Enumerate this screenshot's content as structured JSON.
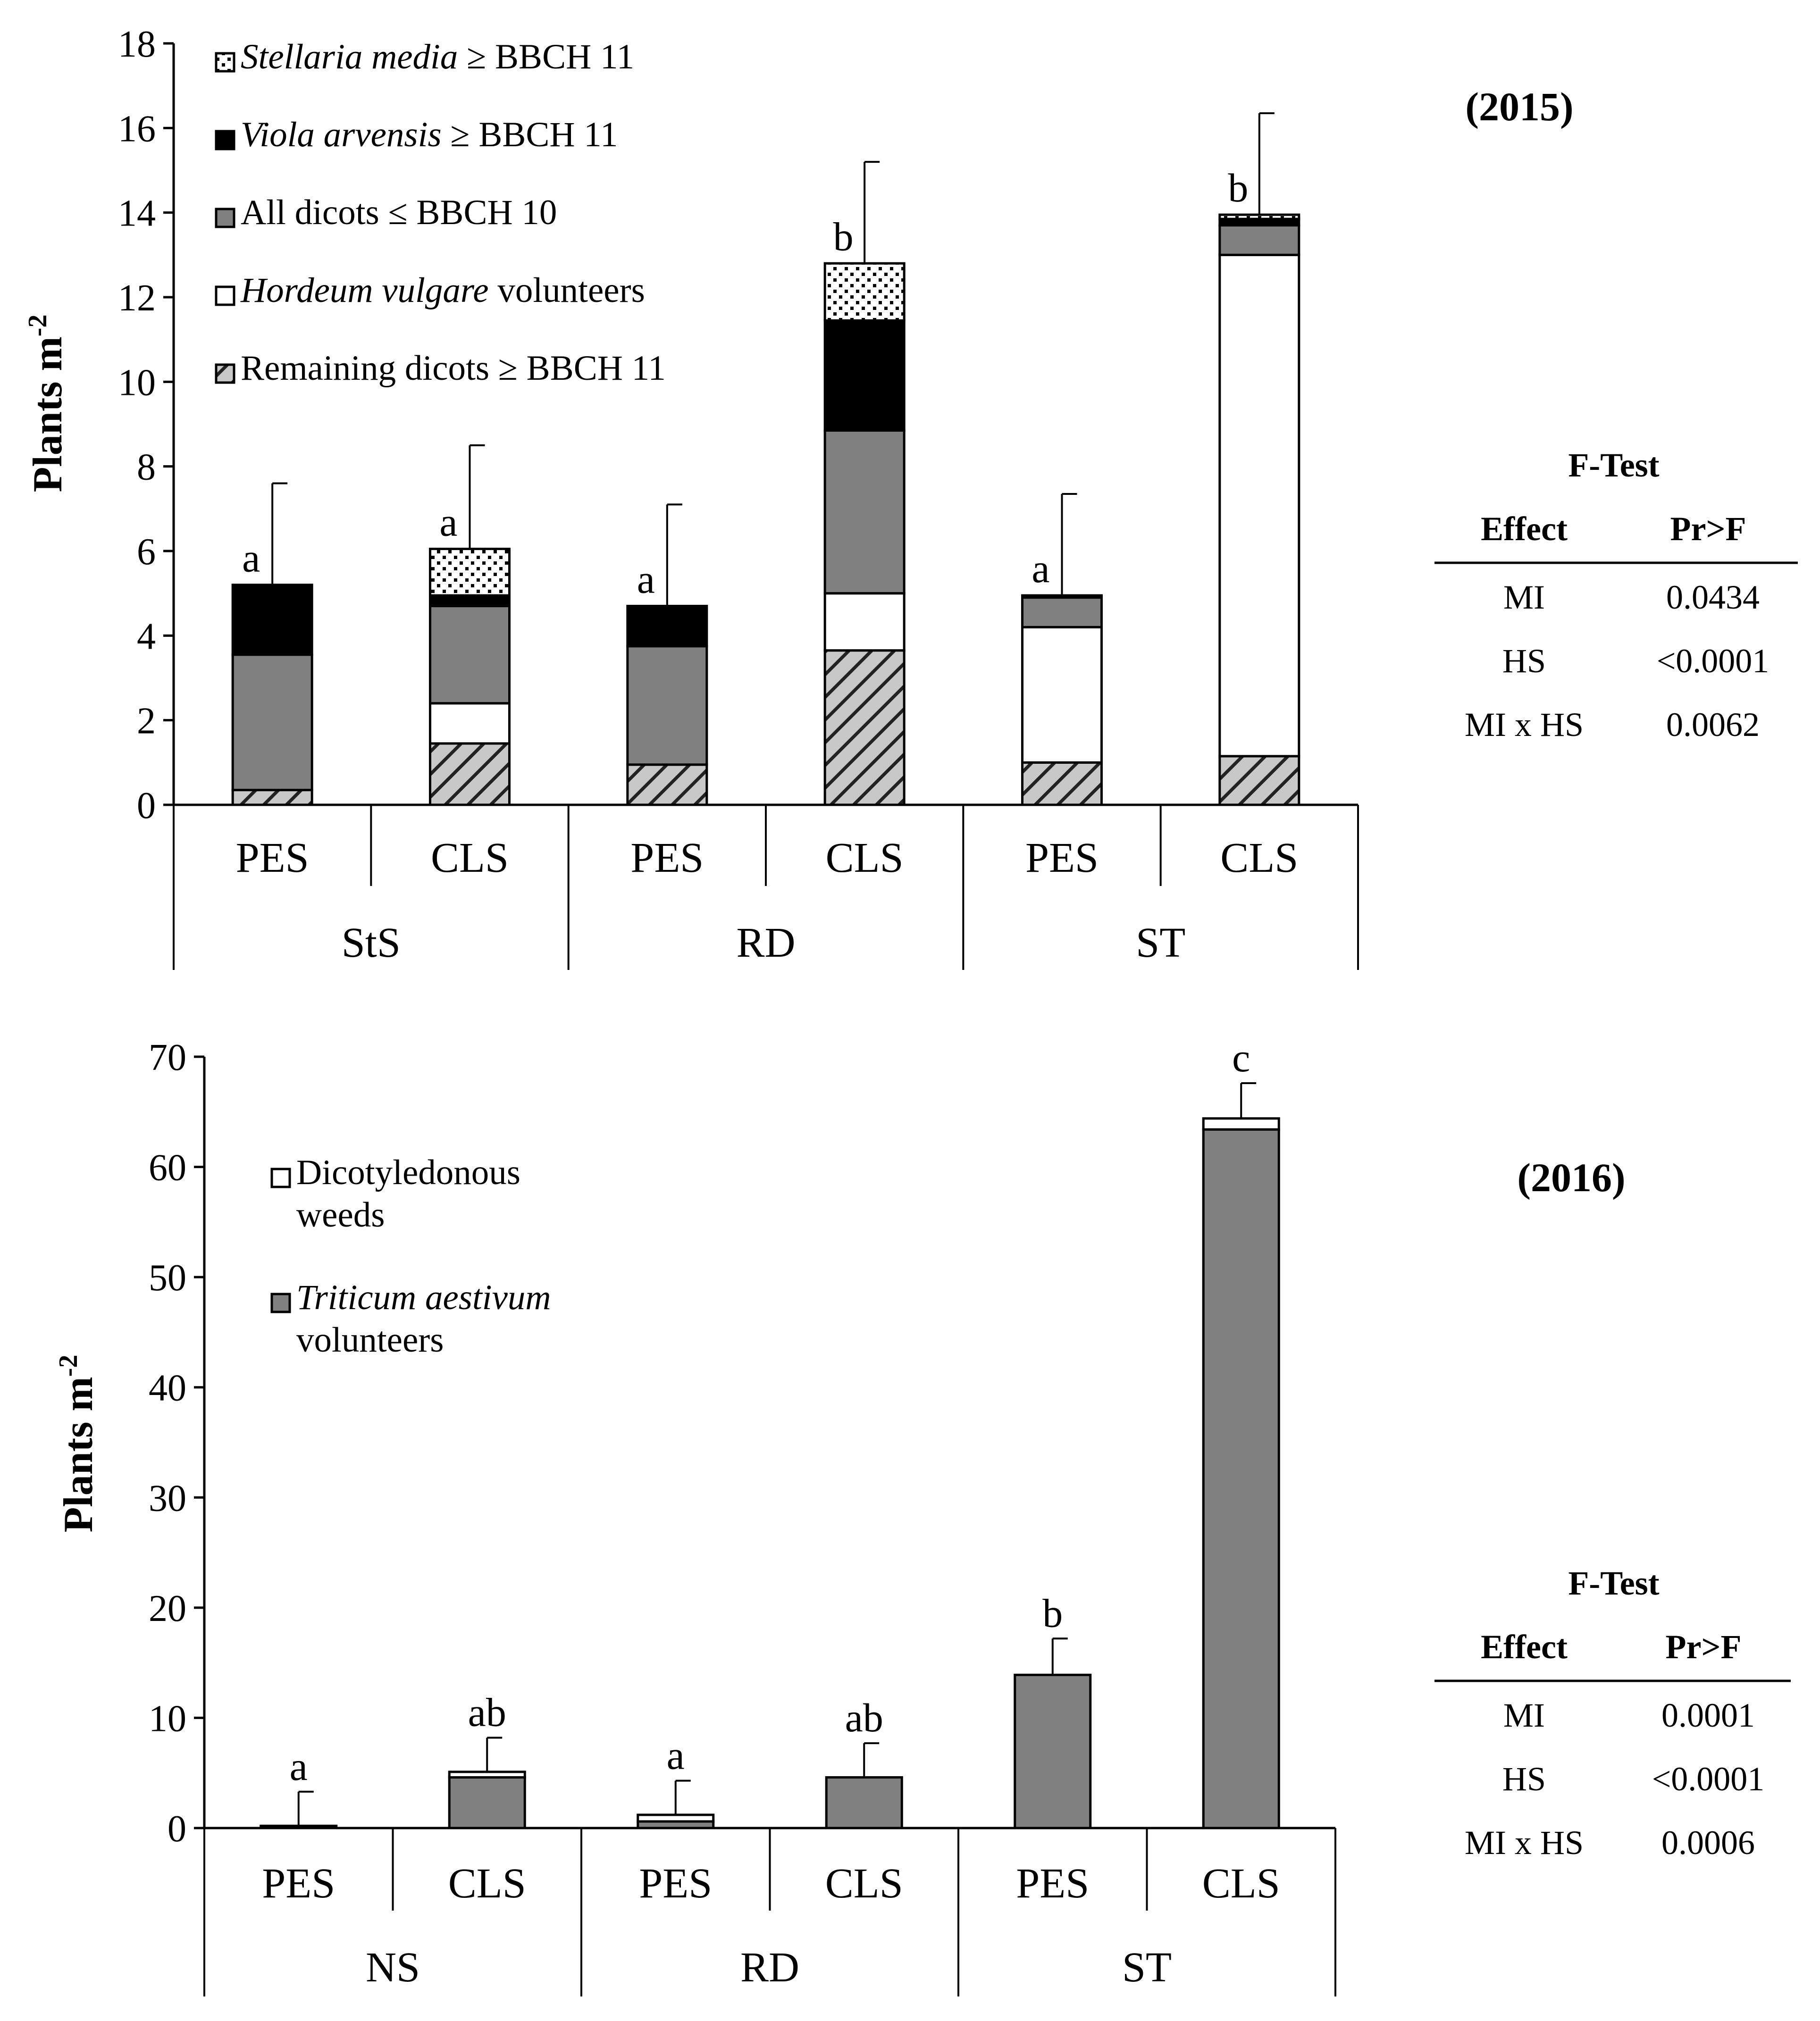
{
  "chart_data": [
    {
      "type": "bar",
      "stacked": true,
      "year_label": "(2015)",
      "ylabel": "Plants m",
      "ylabel_sup": "-2",
      "ylim": [
        0,
        18
      ],
      "y_ticks": [
        "0",
        "2",
        "4",
        "6",
        "8",
        "10",
        "12",
        "14",
        "16",
        "18"
      ],
      "categories": [
        "PES",
        "CLS",
        "PES",
        "CLS",
        "PES",
        "CLS"
      ],
      "groups": [
        "StS",
        "RD",
        "ST"
      ],
      "series": [
        {
          "name": "Remaining dicots ≥ BBCH 11",
          "key": "remaining",
          "fill": "hatch",
          "values": [
            0.35,
            1.45,
            0.95,
            3.65,
            1.0,
            1.15
          ]
        },
        {
          "name": "Hordeum vulgare volunteers",
          "key": "hordeum",
          "fill": "#ffffff",
          "values": [
            0.0,
            0.95,
            0.0,
            1.35,
            3.2,
            11.85
          ]
        },
        {
          "name": "All dicots ≤ BBCH 10",
          "key": "dicots",
          "fill": "#808080",
          "values": [
            3.2,
            2.3,
            2.8,
            3.85,
            0.7,
            0.7
          ]
        },
        {
          "name": "Viola arvensis ≥ BBCH 11",
          "key": "viola",
          "fill": "#000000",
          "values": [
            1.65,
            0.25,
            0.95,
            2.6,
            0.05,
            0.15
          ]
        },
        {
          "name": "Stellaria media ≥ BBCH 11",
          "key": "stellaria",
          "fill": "dots",
          "values": [
            0.0,
            1.1,
            0.0,
            1.35,
            0.0,
            0.1
          ]
        }
      ],
      "legend": [
        {
          "key": "stellaria",
          "italic": "Stellaria media",
          "rest": " ≥ BBCH 11"
        },
        {
          "key": "viola",
          "italic": "Viola arvensis",
          "rest": " ≥ BBCH 11"
        },
        {
          "key": "dicots",
          "italic": "",
          "rest": "All dicots ≤ BBCH 10"
        },
        {
          "key": "hordeum",
          "italic": "Hordeum vulgare",
          "rest": " volunteers"
        },
        {
          "key": "remaining",
          "italic": "",
          "rest": "Remaining dicots ≥ BBCH 11"
        }
      ],
      "error_tops": [
        7.6,
        8.5,
        7.1,
        15.2,
        7.35,
        16.35
      ],
      "letters": [
        "a",
        "a",
        "a",
        "b",
        "a",
        "b"
      ],
      "ftest": {
        "title": "F-Test",
        "headers": [
          "Effect",
          "Pr>F"
        ],
        "rows": [
          [
            "MI",
            "0.0434"
          ],
          [
            "HS",
            "<0.0001"
          ],
          [
            "MI x HS",
            "0.0062"
          ]
        ]
      }
    },
    {
      "type": "bar",
      "stacked": true,
      "year_label": "(2016)",
      "ylabel": "Plants m",
      "ylabel_sup": "-2",
      "ylim": [
        0,
        70
      ],
      "y_ticks": [
        "0",
        "10",
        "20",
        "30",
        "40",
        "50",
        "60",
        "70"
      ],
      "categories": [
        "PES",
        "CLS",
        "PES",
        "CLS",
        "PES",
        "CLS"
      ],
      "groups": [
        "NS",
        "RD",
        "ST"
      ],
      "series": [
        {
          "name": "Triticum aestivum volunteers",
          "key": "triticum",
          "fill": "#808080",
          "values": [
            0.0,
            4.6,
            0.6,
            4.6,
            13.9,
            63.4
          ]
        },
        {
          "name": "Dicotyledonous weeds",
          "key": "dicotyl",
          "fill": "#ffffff",
          "values": [
            0.2,
            0.5,
            0.6,
            0.0,
            0.0,
            1.0
          ]
        }
      ],
      "legend": [
        {
          "key": "dicotyl",
          "italic": "",
          "rest": "Dicotyledonous",
          "line2": "weeds"
        },
        {
          "key": "triticum",
          "italic": "Triticum aestivum",
          "rest": "",
          "line2": "volunteers"
        }
      ],
      "error_tops": [
        3.3,
        8.2,
        4.3,
        7.7,
        17.2,
        67.6
      ],
      "letters": [
        "a",
        "ab",
        "a",
        "ab",
        "b",
        "c"
      ],
      "ftest": {
        "title": "F-Test",
        "headers": [
          "Effect",
          "Pr>F"
        ],
        "rows": [
          [
            "MI",
            "0.0001"
          ],
          [
            "HS",
            "<0.0001"
          ],
          [
            "MI x HS",
            "0.0006"
          ]
        ]
      }
    }
  ]
}
